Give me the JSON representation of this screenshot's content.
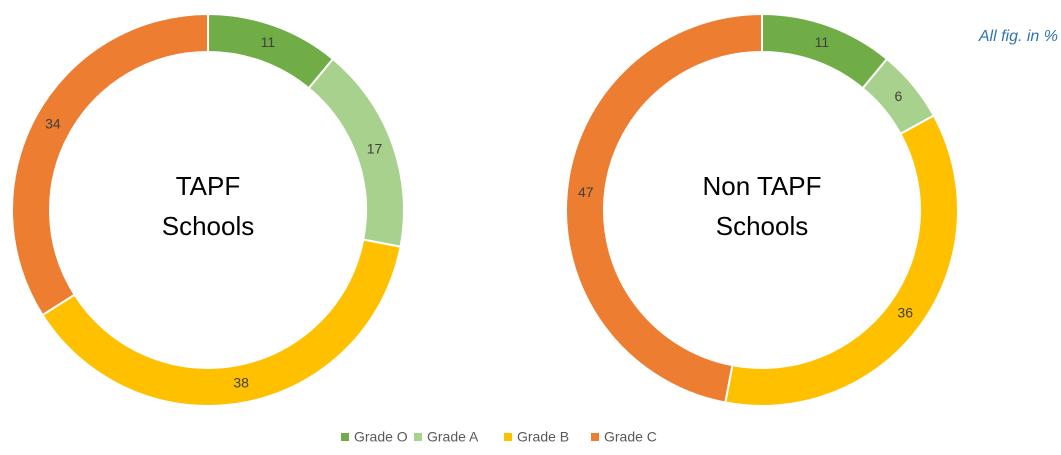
{
  "chart_data": [
    {
      "type": "pie",
      "donut": true,
      "center_label": [
        "TAPF",
        "Schools"
      ],
      "values": [
        11,
        17,
        38,
        34
      ]
    },
    {
      "type": "pie",
      "donut": true,
      "center_label": [
        "Non TAPF",
        "Schools"
      ],
      "values": [
        11,
        6,
        36,
        47
      ]
    }
  ],
  "legend": {
    "categories": [
      "Grade O",
      "Grade A",
      "Grade B",
      "Grade C"
    ],
    "colors": [
      "#70ad47",
      "#a9d18e",
      "#ffc000",
      "#ed7d31"
    ]
  },
  "annotation": "All fig. in %"
}
